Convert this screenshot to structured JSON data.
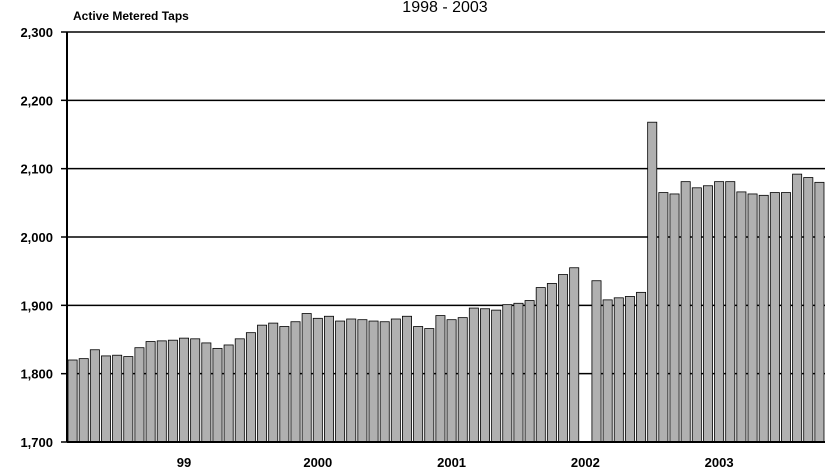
{
  "chart_data": {
    "type": "bar",
    "title": "1998 - 2003",
    "ylabel": "Active Metered Taps",
    "xlabel": "",
    "ylim": [
      1700,
      2300
    ],
    "yticks": [
      "1,700",
      "1,800",
      "1,900",
      "2,000",
      "2,100",
      "2,200",
      "2,300"
    ],
    "x_tick_labels": [
      {
        "label": "99",
        "index": 10
      },
      {
        "label": "2000",
        "index": 22
      },
      {
        "label": "2001",
        "index": 34
      },
      {
        "label": "2002",
        "index": 46
      },
      {
        "label": "2003",
        "index": 58
      }
    ],
    "grid": true,
    "bar_color": "#b0b0b0",
    "values": [
      1820,
      1822,
      1835,
      1826,
      1827,
      1825,
      1838,
      1847,
      1848,
      1849,
      1852,
      1851,
      1845,
      1837,
      1842,
      1851,
      1860,
      1871,
      1874,
      1869,
      1876,
      1888,
      1881,
      1884,
      1877,
      1880,
      1879,
      1877,
      1876,
      1880,
      1884,
      1869,
      1866,
      1885,
      1879,
      1882,
      1896,
      1895,
      1893,
      1901,
      1903,
      1907,
      1926,
      1932,
      1945,
      1955,
      null,
      1936,
      1908,
      1911,
      1913,
      1919,
      2168,
      2065,
      2063,
      2081,
      2072,
      2075,
      2081,
      2081,
      2066,
      2063,
      2061,
      2065,
      2065,
      2092,
      2087,
      2080
    ]
  }
}
